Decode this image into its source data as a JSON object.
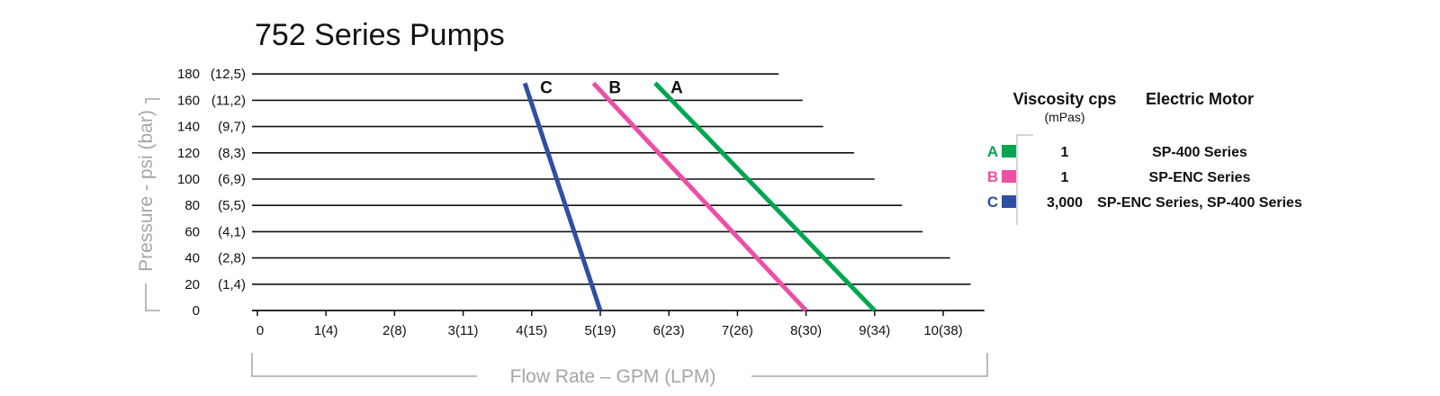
{
  "chart_data": {
    "type": "line",
    "title": "752 Series Pumps",
    "xlabel": "Flow Rate – GPM (LPM)",
    "ylabel": "Pressure - psi (bar)",
    "xlim": [
      0,
      10.6
    ],
    "ylim": [
      0,
      180
    ],
    "x_ticks": [
      {
        "value": 0,
        "label": "0"
      },
      {
        "value": 1,
        "label": "1(4)"
      },
      {
        "value": 2,
        "label": "2(8)"
      },
      {
        "value": 3,
        "label": "3(11)"
      },
      {
        "value": 4,
        "label": "4(15)"
      },
      {
        "value": 5,
        "label": "5(19)"
      },
      {
        "value": 6,
        "label": "6(23)"
      },
      {
        "value": 7,
        "label": "7(26)"
      },
      {
        "value": 8,
        "label": "8(30)"
      },
      {
        "value": 9,
        "label": "9(34)"
      },
      {
        "value": 10,
        "label": "10(38)"
      }
    ],
    "y_ticks": [
      {
        "value": 0,
        "psi": "0",
        "bar": ""
      },
      {
        "value": 20,
        "psi": "20",
        "bar": "(1,4)"
      },
      {
        "value": 40,
        "psi": "40",
        "bar": "(2,8)"
      },
      {
        "value": 60,
        "psi": "60",
        "bar": "(4,1)"
      },
      {
        "value": 80,
        "psi": "80",
        "bar": "(5,5)"
      },
      {
        "value": 100,
        "psi": "100",
        "bar": "(6,9)"
      },
      {
        "value": 120,
        "psi": "120",
        "bar": "(8,3)"
      },
      {
        "value": 140,
        "psi": "140",
        "bar": "(9,7)"
      },
      {
        "value": 160,
        "psi": "160",
        "bar": "(11,2)"
      },
      {
        "value": 180,
        "psi": "180",
        "bar": "(12,5)"
      }
    ],
    "gridline_ends": [
      {
        "y": 20,
        "x_end": 10.4
      },
      {
        "y": 40,
        "x_end": 10.1
      },
      {
        "y": 60,
        "x_end": 9.7
      },
      {
        "y": 80,
        "x_end": 9.4
      },
      {
        "y": 100,
        "x_end": 9.0
      },
      {
        "y": 120,
        "x_end": 8.7
      },
      {
        "y": 140,
        "x_end": 8.25
      },
      {
        "y": 160,
        "x_end": 7.95
      },
      {
        "y": 180,
        "x_end": 7.6
      }
    ],
    "grid": true,
    "series": [
      {
        "name": "A",
        "color": "#00a651",
        "points": [
          [
            5.8,
            173
          ],
          [
            9.0,
            0
          ]
        ]
      },
      {
        "name": "B",
        "color": "#ec4fa3",
        "points": [
          [
            4.9,
            173
          ],
          [
            8.0,
            0
          ]
        ]
      },
      {
        "name": "C",
        "color": "#2e4fa3",
        "points": [
          [
            3.9,
            173
          ],
          [
            5.0,
            0
          ]
        ]
      }
    ],
    "legend": {
      "placement": "right",
      "viscosity_header": "Viscosity cps",
      "viscosity_unit": "(mPas)",
      "motor_header": "Electric Motor",
      "rows": [
        {
          "letter": "A",
          "color": "#00a651",
          "viscosity": "1",
          "motor": "SP-400 Series"
        },
        {
          "letter": "B",
          "color": "#ec4fa3",
          "viscosity": "1",
          "motor": "SP-ENC Series"
        },
        {
          "letter": "C",
          "color": "#2e4fa3",
          "viscosity": "3,000",
          "motor": "SP-ENC Series, SP-400 Series"
        }
      ]
    }
  }
}
